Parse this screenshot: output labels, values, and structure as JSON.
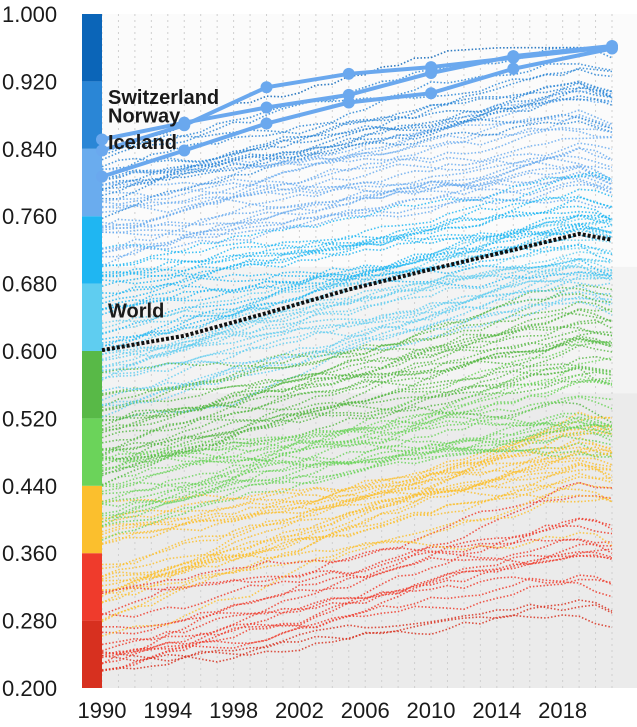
{
  "chart_data": {
    "type": "line",
    "x_ticks": [
      1990,
      1994,
      1998,
      2002,
      2006,
      2010,
      2014,
      2018
    ],
    "xlim": [
      1990,
      2021
    ],
    "ylim": [
      0.2,
      1.0
    ],
    "y_ticks": [
      "0.200",
      "0.280",
      "0.360",
      "0.440",
      "0.520",
      "0.600",
      "0.680",
      "0.760",
      "0.840",
      "0.920",
      "1.000"
    ],
    "grid": "vertical dotted",
    "background_bands": [
      {
        "from": 0.2,
        "to": 0.55,
        "color": "#ebebeb"
      },
      {
        "from": 0.55,
        "to": 0.7,
        "color": "#f3f3f3"
      },
      {
        "from": 0.7,
        "to": 1.0,
        "color": "#fbfbfb"
      }
    ],
    "color_scale": [
      {
        "from": 0.2,
        "to": 0.28,
        "color": "#d7301f"
      },
      {
        "from": 0.28,
        "to": 0.36,
        "color": "#ef3b2c"
      },
      {
        "from": 0.36,
        "to": 0.44,
        "color": "#fbbf2d"
      },
      {
        "from": 0.44,
        "to": 0.52,
        "color": "#6bd35a"
      },
      {
        "from": 0.52,
        "to": 0.6,
        "color": "#58b947"
      },
      {
        "from": 0.6,
        "to": 0.68,
        "color": "#5fcdf0"
      },
      {
        "from": 0.68,
        "to": 0.76,
        "color": "#1fb6f2"
      },
      {
        "from": 0.76,
        "to": 0.84,
        "color": "#6aacee"
      },
      {
        "from": 0.84,
        "to": 0.92,
        "color": "#2a86d6"
      },
      {
        "from": 0.92,
        "to": 1.0,
        "color": "#0b65b8"
      }
    ],
    "highlighted": [
      {
        "name": "Switzerland",
        "x": [
          1990,
          1995,
          2000,
          2005,
          2010,
          2015,
          2021
        ],
        "y": [
          0.851,
          0.871,
          0.889,
          0.904,
          0.93,
          0.95,
          0.962
        ]
      },
      {
        "name": "Norway",
        "x": [
          1990,
          1995,
          2000,
          2005,
          2010,
          2015,
          2021
        ],
        "y": [
          0.838,
          0.868,
          0.913,
          0.929,
          0.937,
          0.948,
          0.961
        ]
      },
      {
        "name": "Iceland",
        "x": [
          1990,
          1995,
          2000,
          2005,
          2010,
          2015,
          2021
        ],
        "y": [
          0.807,
          0.838,
          0.87,
          0.895,
          0.906,
          0.935,
          0.959
        ]
      }
    ],
    "world": {
      "name": "World",
      "x": [
        1990,
        1995,
        2000,
        2005,
        2010,
        2015,
        2019,
        2021
      ],
      "y": [
        0.601,
        0.618,
        0.645,
        0.673,
        0.697,
        0.72,
        0.739,
        0.732
      ]
    }
  }
}
